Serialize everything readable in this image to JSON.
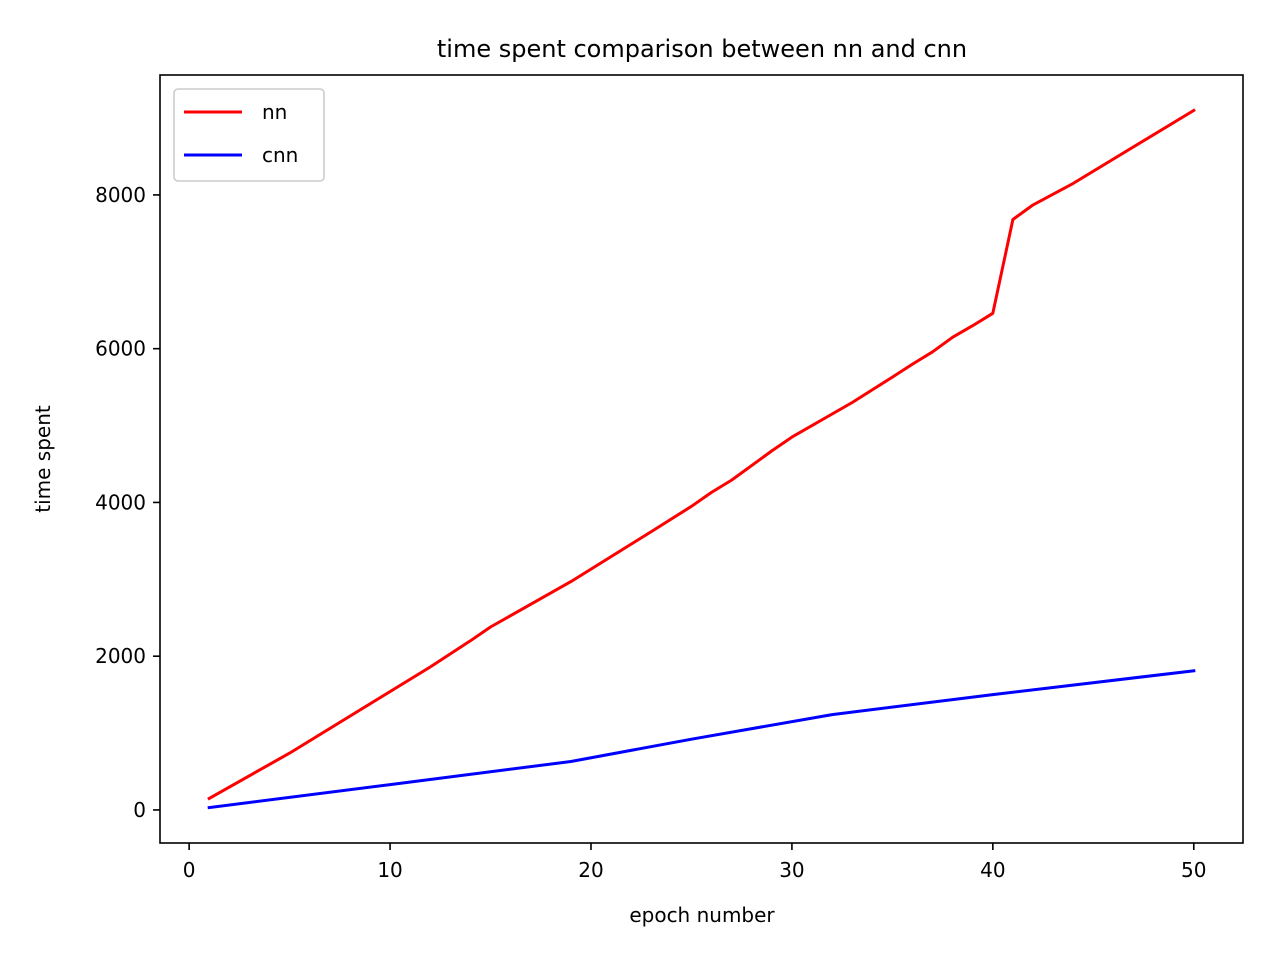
{
  "chart_data": {
    "type": "line",
    "title": "time spent comparison between nn and cnn",
    "xlabel": "epoch number",
    "ylabel": "time spent",
    "xlim": [
      -1.45,
      52.45
    ],
    "ylim": [
      -430,
      9560
    ],
    "xticks": [
      0,
      10,
      20,
      30,
      40,
      50
    ],
    "yticks": [
      0,
      2000,
      4000,
      6000,
      8000
    ],
    "grid": false,
    "legend_position": "upper left",
    "series": [
      {
        "name": "nn",
        "color": "#ff0000",
        "points": [
          [
            1,
            150
          ],
          [
            5,
            740
          ],
          [
            12,
            1860
          ],
          [
            14,
            2200
          ],
          [
            15,
            2380
          ],
          [
            19,
            2970
          ],
          [
            23,
            3620
          ],
          [
            25,
            3950
          ],
          [
            26,
            4130
          ],
          [
            27,
            4290
          ],
          [
            29,
            4670
          ],
          [
            30,
            4850
          ],
          [
            33,
            5300
          ],
          [
            35,
            5630
          ],
          [
            36,
            5800
          ],
          [
            37,
            5960
          ],
          [
            38,
            6150
          ],
          [
            39,
            6300
          ],
          [
            40,
            6460
          ],
          [
            41,
            7680
          ],
          [
            42,
            7870
          ],
          [
            44,
            8150
          ],
          [
            50,
            9100
          ]
        ]
      },
      {
        "name": "cnn",
        "color": "#0000ff",
        "points": [
          [
            1,
            30
          ],
          [
            10,
            330
          ],
          [
            19,
            630
          ],
          [
            25,
            920
          ],
          [
            32,
            1240
          ],
          [
            40,
            1500
          ],
          [
            50,
            1810
          ]
        ]
      }
    ]
  }
}
